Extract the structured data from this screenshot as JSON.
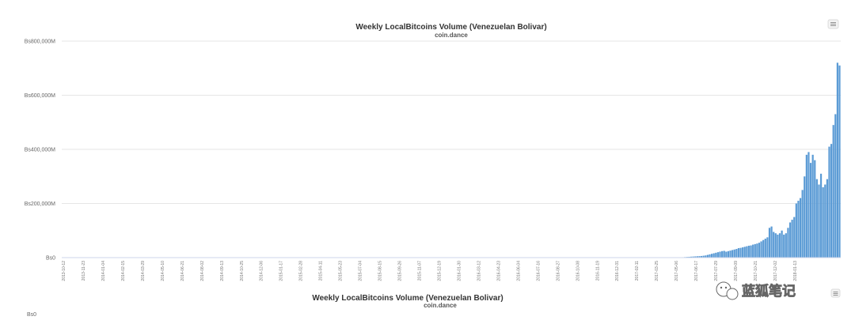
{
  "chart_data": {
    "type": "bar",
    "title": "Weekly LocalBitcoins Volume (Venezuelan Bolivar)",
    "subtitle": "coin.dance",
    "ylim": [
      0,
      800000
    ],
    "y_ticks": [
      "Bs0",
      "Bs200,000M",
      "Bs400,000M",
      "Bs600,000M",
      "Bs800,000M"
    ],
    "y_tick_values": [
      0,
      200000,
      400000,
      600000,
      800000
    ],
    "grid": true,
    "legend": "none",
    "x_tick_labels": [
      "2013-10-12",
      "2013-11-23",
      "2014-01-04",
      "2014-02-15",
      "2014-03-29",
      "2014-05-10",
      "2014-06-21",
      "2014-08-02",
      "2014-09-13",
      "2014-10-25",
      "2014-12-06",
      "2015-01-17",
      "2015-02-28",
      "2015-04-11",
      "2015-05-23",
      "2015-07-04",
      "2015-08-15",
      "2015-09-26",
      "2015-11-07",
      "2015-12-19",
      "2016-01-30",
      "2016-03-12",
      "2016-04-23",
      "2016-06-04",
      "2016-07-16",
      "2016-08-27",
      "2016-10-08",
      "2016-11-19",
      "2016-12-31",
      "2017-02-11",
      "2017-03-25",
      "2017-05-06",
      "2017-06-17",
      "2017-07-29",
      "2017-09-09",
      "2017-10-21",
      "2017-12-02",
      "2018-01-13"
    ],
    "values": [
      0,
      0,
      0,
      0,
      0,
      0,
      0,
      0,
      0,
      0,
      0,
      0,
      0,
      0,
      0,
      0,
      0,
      0,
      0,
      0,
      0,
      0,
      0,
      0,
      0,
      0,
      0,
      0,
      0,
      0,
      0,
      0,
      0,
      0,
      0,
      0,
      0,
      0,
      0,
      0,
      0,
      0,
      0,
      0,
      0,
      0,
      0,
      0,
      0,
      0,
      0,
      0,
      0,
      0,
      0,
      0,
      0,
      0,
      0,
      0,
      0,
      0,
      0,
      0,
      0,
      0,
      0,
      0,
      0,
      0,
      0,
      0,
      0,
      0,
      0,
      0,
      0,
      0,
      0,
      0,
      0,
      0,
      0,
      0,
      0,
      0,
      0,
      0,
      0,
      0,
      0,
      0,
      0,
      0,
      0,
      0,
      0,
      0,
      0,
      0,
      0,
      0,
      0,
      0,
      0,
      0,
      0,
      0,
      0,
      0,
      0,
      0,
      0,
      0,
      0,
      0,
      0,
      0,
      0,
      0,
      0,
      0,
      0,
      0,
      0,
      0,
      0,
      0,
      0,
      0,
      0,
      0,
      0,
      0,
      0,
      0,
      0,
      0,
      0,
      0,
      0,
      0,
      0,
      0,
      0,
      0,
      0,
      0,
      0,
      0,
      0,
      0,
      0,
      0,
      0,
      0,
      0,
      0,
      0,
      0,
      0,
      0,
      0,
      0,
      0,
      0,
      0,
      0,
      0,
      0,
      0,
      0,
      0,
      0,
      0,
      0,
      0,
      0,
      0,
      0,
      0,
      0,
      0,
      0,
      0,
      0,
      0,
      0,
      0,
      0,
      0,
      0,
      0,
      0,
      0,
      0,
      0,
      0,
      0,
      0,
      0,
      0,
      0,
      0,
      0,
      0,
      0,
      0,
      0,
      0,
      0,
      0,
      0,
      0,
      0,
      0,
      0,
      0,
      0,
      0,
      0,
      0,
      0,
      0,
      0,
      0,
      0,
      0,
      0,
      0,
      0,
      0,
      0,
      0,
      0,
      0,
      0,
      0,
      0,
      0,
      0,
      0,
      0,
      0,
      0,
      0,
      0,
      0,
      0,
      0,
      0,
      0,
      0,
      0,
      0,
      0,
      0,
      0,
      0,
      0,
      0,
      0,
      0,
      0,
      0,
      0,
      0,
      0,
      0,
      0,
      0,
      0,
      0,
      0,
      0,
      0,
      0,
      0,
      0,
      0,
      0,
      0,
      0,
      0,
      0,
      0,
      0,
      0,
      0,
      0,
      0,
      0,
      0,
      0,
      0,
      0,
      0,
      0,
      0,
      0,
      1000,
      1500,
      2000,
      2500,
      3000,
      3500,
      4000,
      4500,
      5000,
      5500,
      6000,
      7000,
      8000,
      10000,
      12000,
      14000,
      16000,
      18000,
      20000,
      22000,
      24000,
      25000,
      22000,
      24000,
      26000,
      28000,
      30000,
      32000,
      35000,
      36000,
      38000,
      40000,
      42000,
      44000,
      45000,
      48000,
      50000,
      52000,
      55000,
      60000,
      65000,
      70000,
      75000,
      110000,
      115000,
      95000,
      90000,
      85000,
      90000,
      100000,
      85000,
      90000,
      110000,
      130000,
      140000,
      150000,
      200000,
      210000,
      220000,
      250000,
      300000,
      380000,
      390000,
      350000,
      380000,
      360000,
      290000,
      270000,
      310000,
      260000,
      270000,
      290000,
      410000,
      420000,
      490000,
      530000,
      720000,
      710000
    ],
    "bar_color": "#5b9bd5"
  },
  "watermark": {
    "text": "蓝狐笔记",
    "icon": "wechat-icon"
  },
  "lower_chart": {
    "title": "Weekly LocalBitcoins Volume (Venezuelan Bolivar)",
    "subtitle": "coin.dance",
    "first_tick": "Bs0"
  },
  "menu_icon": "hamburger-menu-icon"
}
